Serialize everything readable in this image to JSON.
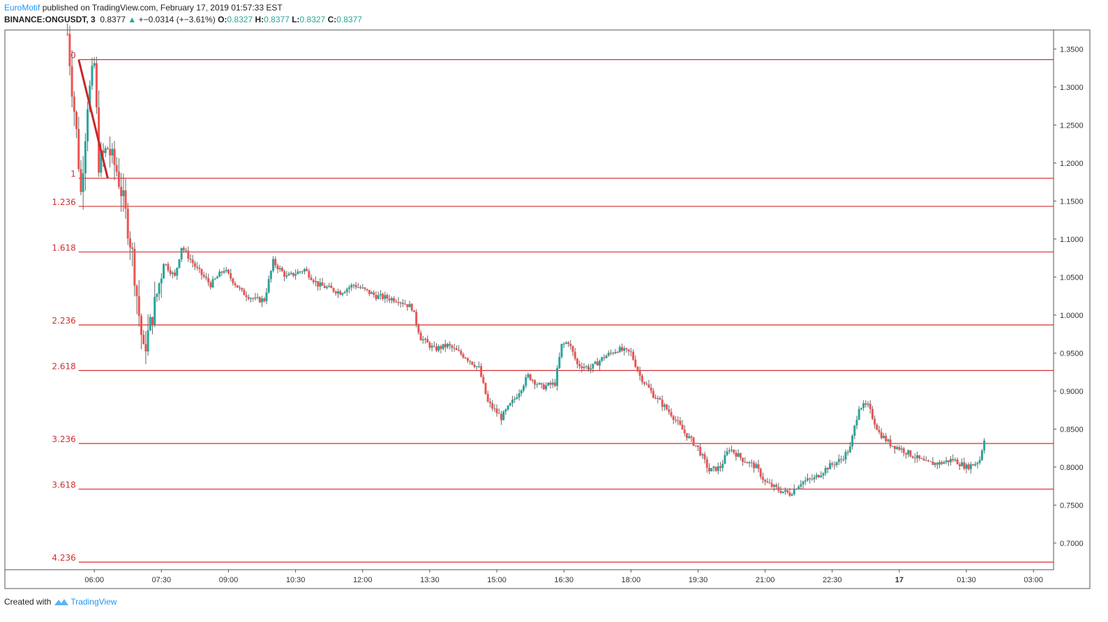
{
  "header": {
    "author": "EuroMotif",
    "published_text": " published on TradingView.com, February 17, 2019 01:57:33 EST",
    "symbol": "BINANCE:ONGUSDT, 3",
    "last": "0.8377",
    "arrow": "▲",
    "change": "+−0.0314 (+−3.61%)",
    "o_label": "O:",
    "o_value": "0.8327",
    "h_label": "H:",
    "h_value": "0.8377",
    "l_label": "L:",
    "l_value": "0.8327",
    "c_label": "C:",
    "c_value": "0.8377"
  },
  "footer": {
    "created_with": "Created with",
    "brand": "TradingView"
  },
  "colors": {
    "up": "#26a69a",
    "down": "#ef5350",
    "fib": "#d32f2f",
    "trend": "#c62828",
    "grid": "#555555"
  },
  "chart_data": {
    "type": "candlestick",
    "title": "BINANCE:ONGUSDT, 3",
    "ylim": [
      0.665,
      1.375
    ],
    "xlim_hours": [
      4.0,
      27.45
    ],
    "y_ticks": [
      "1.3500",
      "1.3000",
      "1.2500",
      "1.2000",
      "1.1500",
      "1.1000",
      "1.0500",
      "1.0000",
      "0.9500",
      "0.9000",
      "0.8500",
      "0.8000",
      "0.7500",
      "0.7000"
    ],
    "y_tick_values": [
      1.35,
      1.3,
      1.25,
      1.2,
      1.15,
      1.1,
      1.05,
      1.0,
      0.95,
      0.9,
      0.85,
      0.8,
      0.75,
      0.7
    ],
    "x_ticks": [
      "06:00",
      "07:30",
      "09:00",
      "10:30",
      "12:00",
      "13:30",
      "15:00",
      "16:30",
      "18:00",
      "19:30",
      "21:00",
      "22:30",
      "17",
      "01:30",
      "03:00"
    ],
    "x_tick_hours": [
      6,
      7.5,
      9,
      10.5,
      12,
      13.5,
      15,
      16.5,
      18,
      19.5,
      21,
      22.5,
      24,
      25.5,
      27
    ],
    "fib_levels": [
      {
        "label": "0",
        "price": 1.336
      },
      {
        "label": "1",
        "price": 1.18
      },
      {
        "label": "1.236",
        "price": 1.143
      },
      {
        "label": "1.618",
        "price": 1.083
      },
      {
        "label": "2.236",
        "price": 0.987
      },
      {
        "label": "2.618",
        "price": 0.927
      },
      {
        "label": "3.236",
        "price": 0.831
      },
      {
        "label": "3.618",
        "price": 0.771
      },
      {
        "label": "4.236",
        "price": 0.675
      }
    ],
    "fib_line_start_hour": 5.65,
    "trend_line": {
      "from": [
        5.65,
        1.336
      ],
      "to": [
        6.3,
        1.18
      ]
    },
    "price_path": [
      [
        5.4,
        1.37
      ],
      [
        5.5,
        1.3
      ],
      [
        5.6,
        1.24
      ],
      [
        5.7,
        1.16
      ],
      [
        5.85,
        1.28
      ],
      [
        6.0,
        1.33
      ],
      [
        6.1,
        1.2
      ],
      [
        6.3,
        1.22
      ],
      [
        6.5,
        1.19
      ],
      [
        6.65,
        1.15
      ],
      [
        6.85,
        1.08
      ],
      [
        7.0,
        1.0
      ],
      [
        7.1,
        0.95
      ],
      [
        7.3,
        1.0
      ],
      [
        7.55,
        1.07
      ],
      [
        7.8,
        1.05
      ],
      [
        7.95,
        1.09
      ],
      [
        8.3,
        1.06
      ],
      [
        8.6,
        1.04
      ],
      [
        8.9,
        1.06
      ],
      [
        9.3,
        1.03
      ],
      [
        9.6,
        1.02
      ],
      [
        9.8,
        1.02
      ],
      [
        10.0,
        1.07
      ],
      [
        10.3,
        1.05
      ],
      [
        10.7,
        1.06
      ],
      [
        11.0,
        1.04
      ],
      [
        11.5,
        1.03
      ],
      [
        11.8,
        1.04
      ],
      [
        12.3,
        1.025
      ],
      [
        12.8,
        1.02
      ],
      [
        13.1,
        1.01
      ],
      [
        13.3,
        0.97
      ],
      [
        13.6,
        0.955
      ],
      [
        13.9,
        0.96
      ],
      [
        14.3,
        0.945
      ],
      [
        14.6,
        0.93
      ],
      [
        14.8,
        0.885
      ],
      [
        15.1,
        0.865
      ],
      [
        15.4,
        0.89
      ],
      [
        15.7,
        0.92
      ],
      [
        16.0,
        0.905
      ],
      [
        16.3,
        0.91
      ],
      [
        16.45,
        0.96
      ],
      [
        16.6,
        0.965
      ],
      [
        16.8,
        0.935
      ],
      [
        17.1,
        0.93
      ],
      [
        17.4,
        0.945
      ],
      [
        17.7,
        0.955
      ],
      [
        18.0,
        0.95
      ],
      [
        18.2,
        0.92
      ],
      [
        18.5,
        0.895
      ],
      [
        18.9,
        0.87
      ],
      [
        19.2,
        0.845
      ],
      [
        19.5,
        0.825
      ],
      [
        19.75,
        0.795
      ],
      [
        20.0,
        0.8
      ],
      [
        20.2,
        0.825
      ],
      [
        20.5,
        0.81
      ],
      [
        20.8,
        0.8
      ],
      [
        21.0,
        0.78
      ],
      [
        21.3,
        0.77
      ],
      [
        21.55,
        0.765
      ],
      [
        21.8,
        0.78
      ],
      [
        22.1,
        0.785
      ],
      [
        22.4,
        0.8
      ],
      [
        22.7,
        0.81
      ],
      [
        22.9,
        0.825
      ],
      [
        23.1,
        0.88
      ],
      [
        23.3,
        0.88
      ],
      [
        23.55,
        0.845
      ],
      [
        23.8,
        0.83
      ],
      [
        24.0,
        0.825
      ],
      [
        24.3,
        0.815
      ],
      [
        24.6,
        0.805
      ],
      [
        24.9,
        0.805
      ],
      [
        25.2,
        0.81
      ],
      [
        25.5,
        0.8
      ],
      [
        25.7,
        0.805
      ],
      [
        25.8,
        0.81
      ],
      [
        25.9,
        0.838
      ]
    ]
  }
}
